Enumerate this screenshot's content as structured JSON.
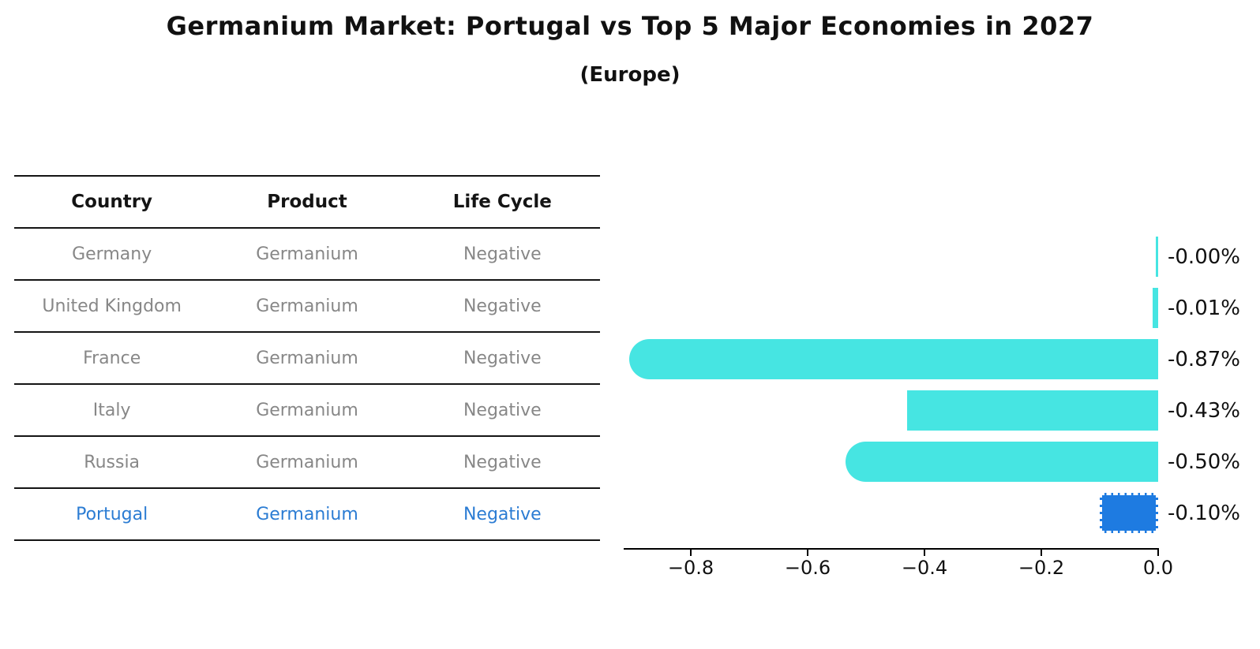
{
  "chart_data": {
    "type": "bar",
    "orientation": "horizontal",
    "title": "Germanium Market: Portugal vs Top 5 Major Economies in 2027",
    "subtitle": "(Europe)",
    "categories": [
      "Germany",
      "United Kingdom",
      "France",
      "Italy",
      "Russia",
      "Portugal"
    ],
    "values": [
      -0.0,
      -0.01,
      -0.87,
      -0.43,
      -0.5,
      -0.1
    ],
    "value_labels": [
      "-0.00%",
      "-0.01%",
      "-0.87%",
      "-0.43%",
      "-0.50%",
      "-0.10%"
    ],
    "xlim": [
      -0.9135,
      0
    ],
    "xticks": [
      -0.8,
      -0.6,
      -0.4,
      -0.2,
      0.0
    ],
    "xtick_labels": [
      "−0.8",
      "−0.6",
      "−0.4",
      "−0.2",
      "0.0"
    ],
    "grid": false,
    "legend": false,
    "bar_color": "#46e5e2",
    "highlight_color": "#1e7be1",
    "highlight_index": 5,
    "rounded_caps": [
      false,
      false,
      true,
      false,
      true,
      false
    ]
  },
  "table": {
    "columns": [
      "Country",
      "Product",
      "Life Cycle"
    ],
    "rows": [
      {
        "country": "Germany",
        "product": "Germanium",
        "life_cycle": "Negative"
      },
      {
        "country": "United Kingdom",
        "product": "Germanium",
        "life_cycle": "Negative"
      },
      {
        "country": "France",
        "product": "Germanium",
        "life_cycle": "Negative"
      },
      {
        "country": "Italy",
        "product": "Germanium",
        "life_cycle": "Negative"
      },
      {
        "country": "Russia",
        "product": "Germanium",
        "life_cycle": "Negative"
      },
      {
        "country": "Portugal",
        "product": "Germanium",
        "life_cycle": "Negative"
      }
    ],
    "highlight_index": 5,
    "text_color": "#878787",
    "highlight_text_color": "#2b7cd3"
  }
}
